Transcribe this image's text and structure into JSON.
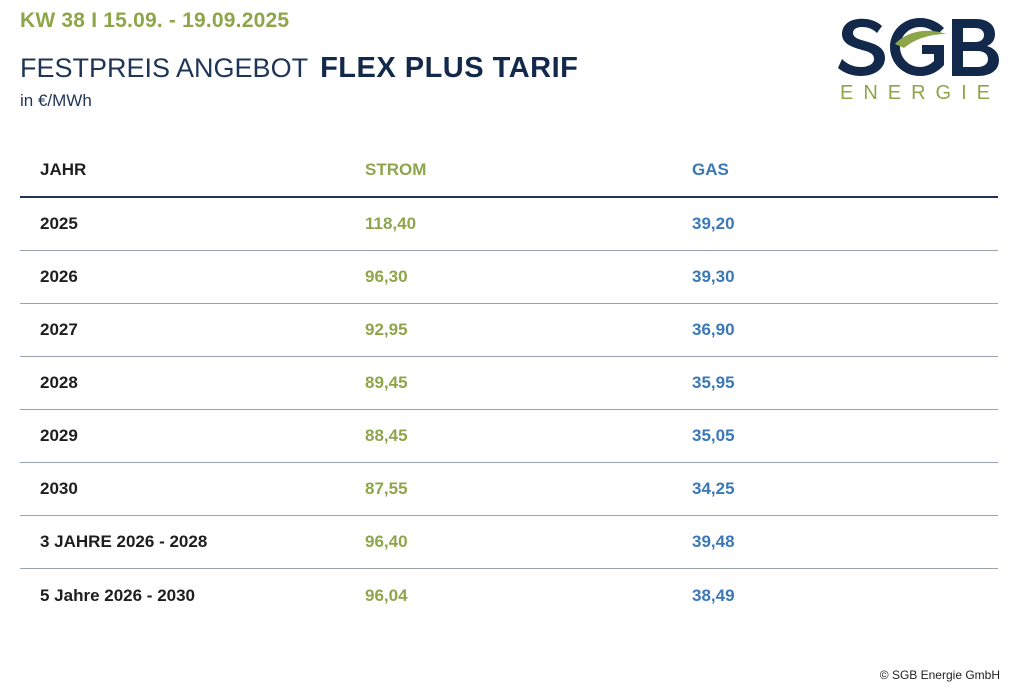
{
  "header": {
    "week": "KW 38 I 15.09. - 19.09.2025",
    "title_normal": "FESTPREIS ANGEBOT",
    "title_bold": "FLEX PLUS TARIF",
    "unit": "in €/MWh"
  },
  "logo": {
    "letters": "SGB",
    "subtitle": "ENERGIE",
    "colors": {
      "dark": "#13294b",
      "green": "#8ea64a"
    }
  },
  "table": {
    "headers": {
      "year": "JAHR",
      "strom": "STROM",
      "gas": "GAS"
    },
    "rows": [
      {
        "year": "2025",
        "strom": "118,40",
        "gas": "39,20"
      },
      {
        "year": "2026",
        "strom": "96,30",
        "gas": "39,30"
      },
      {
        "year": "2027",
        "strom": "92,95",
        "gas": "36,90"
      },
      {
        "year": "2028",
        "strom": "89,45",
        "gas": "35,95"
      },
      {
        "year": "2029",
        "strom": "88,45",
        "gas": "35,05"
      },
      {
        "year": "2030",
        "strom": "87,55",
        "gas": "34,25"
      },
      {
        "year": "3 JAHRE 2026 - 2028",
        "strom": "96,40",
        "gas": "39,48"
      },
      {
        "year": "5 Jahre 2026 - 2030",
        "strom": "96,04",
        "gas": "38,49"
      }
    ]
  },
  "footer": {
    "copyright": "© SGB Energie GmbH"
  },
  "colors": {
    "green": "#8ea64a",
    "blue": "#3a78b7",
    "navy": "#1f3557"
  }
}
